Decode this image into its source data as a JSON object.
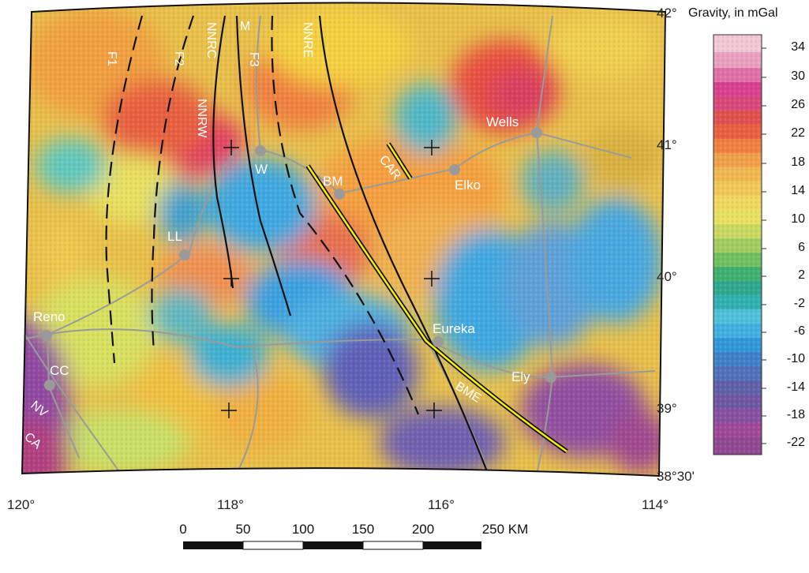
{
  "legend": {
    "title": "Gravity, in mGal",
    "ticks": [
      "34",
      "30",
      "26",
      "22",
      "18",
      "14",
      "10",
      "6",
      "2",
      "-2",
      "-6",
      "-10",
      "-14",
      "-18",
      "-22"
    ]
  },
  "longitude_labels": [
    "120°",
    "118°",
    "116°",
    "114°"
  ],
  "latitude_labels": [
    "42°",
    "41°",
    "40°",
    "39°",
    "38°30'"
  ],
  "cities": [
    "Wells",
    "W",
    "BM",
    "Elko",
    "LL",
    "Reno",
    "Eureka",
    "CC",
    "Ely"
  ],
  "fault_labels": [
    "F1",
    "F2",
    "NNRC",
    "M",
    "F3",
    "NNRE",
    "NNRW",
    "CAR",
    "BME"
  ],
  "state_labels": [
    "NV",
    "CA"
  ],
  "scale": {
    "ticks": [
      "0",
      "50",
      "100",
      "150",
      "200",
      "250 KM"
    ]
  }
}
